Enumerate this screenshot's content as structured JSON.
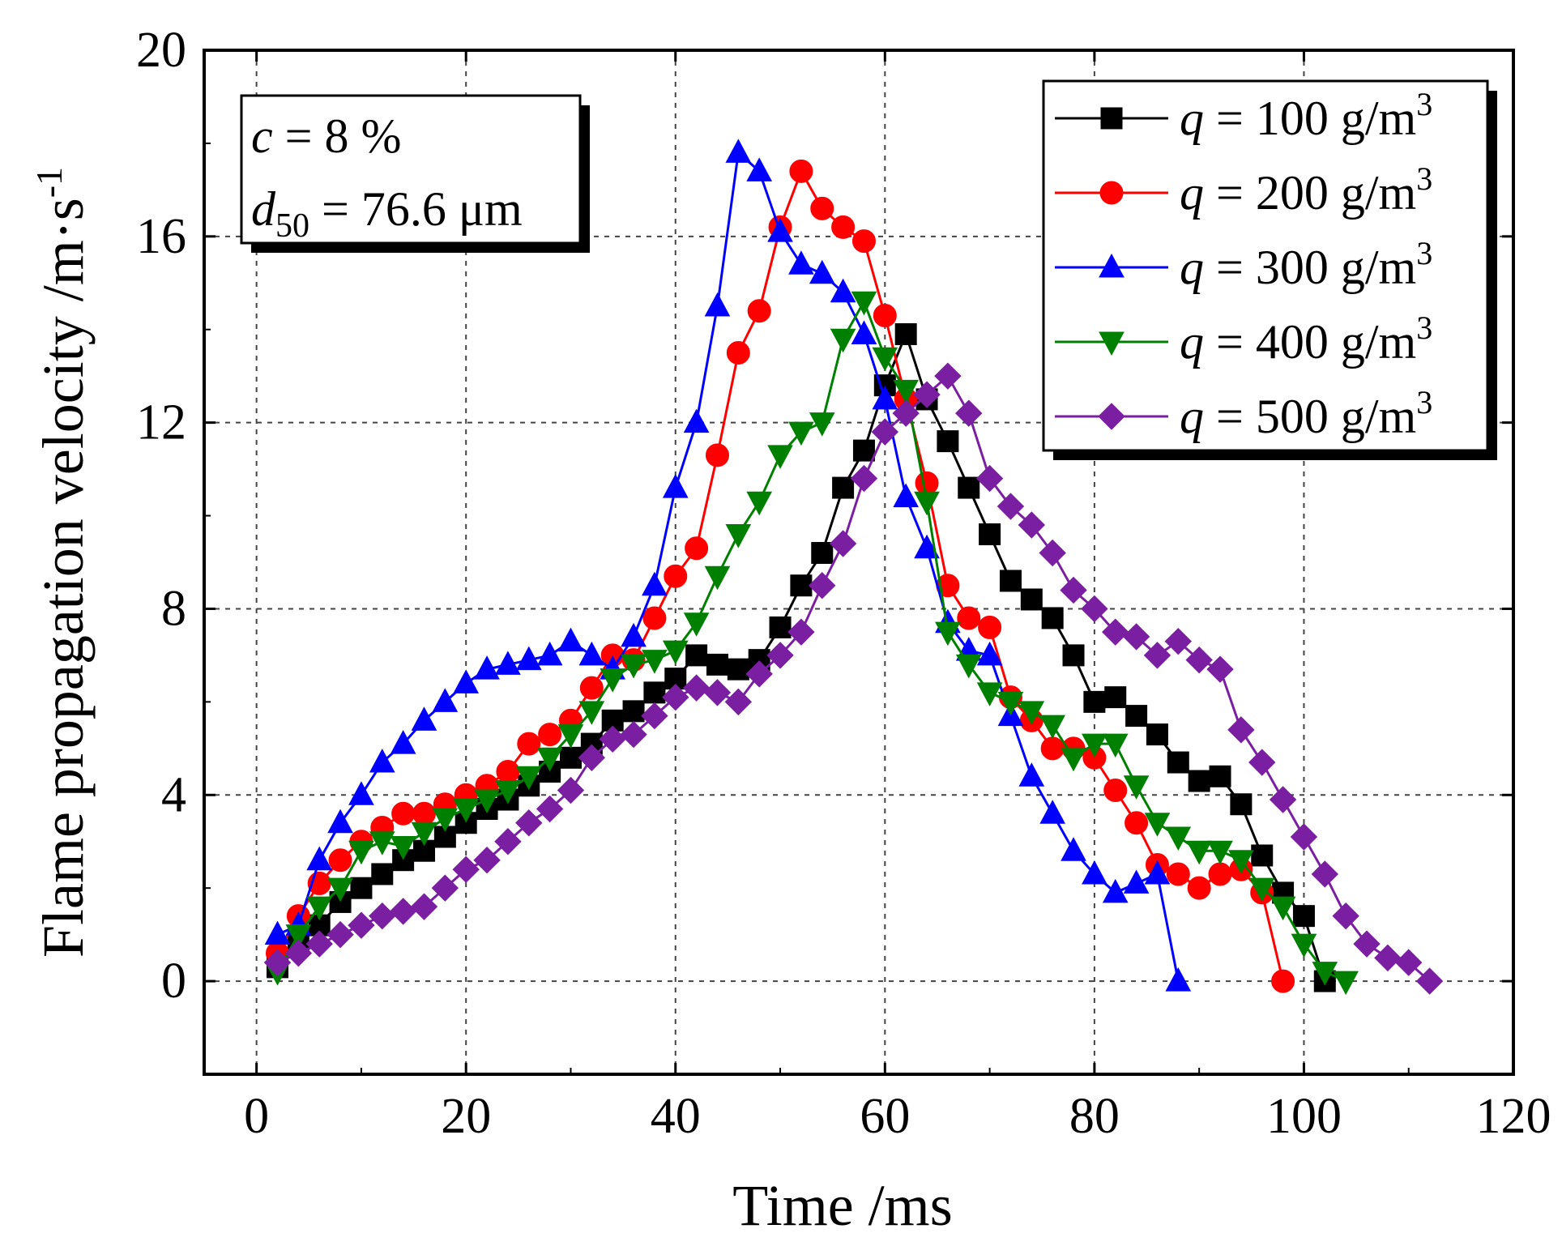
{
  "chart_data": {
    "type": "line",
    "title": "",
    "xlabel": "Time /ms",
    "ylabel": "Flame propagation velocity /m·s",
    "ylabel_sup": "-1",
    "xlim": [
      -5,
      120
    ],
    "ylim": [
      -2,
      20
    ],
    "xticks": [
      0,
      20,
      40,
      60,
      80,
      100,
      120
    ],
    "yticks": [
      0,
      4,
      8,
      12,
      16,
      20
    ],
    "grid": true,
    "legend_position": "top-right",
    "annotation": {
      "c_symbol": "c",
      "c_text": " = 8 %",
      "d_symbol": "d",
      "d_sub": "50",
      "d_text": " = 76.6 μm"
    },
    "series": [
      {
        "name": "q = 100 g/m3",
        "label_q": "q",
        "label_text": " = 100 g/m",
        "label_sup": "3",
        "color": "#000000",
        "marker": "square",
        "x": [
          2,
          4,
          6,
          8,
          10,
          12,
          14,
          16,
          18,
          20,
          22,
          24,
          26,
          28,
          30,
          32,
          34,
          36,
          38,
          40,
          42,
          44,
          46,
          48,
          50,
          52,
          54,
          56,
          58,
          60,
          62,
          64,
          66,
          68,
          70,
          72,
          74,
          76,
          78,
          80,
          82,
          84,
          86,
          88,
          90,
          92,
          94,
          96,
          98,
          100,
          102
        ],
        "y": [
          0.3,
          0.8,
          1.2,
          1.7,
          2.0,
          2.3,
          2.6,
          2.8,
          3.1,
          3.4,
          3.7,
          3.9,
          4.2,
          4.5,
          4.8,
          5.1,
          5.6,
          5.8,
          6.2,
          6.5,
          7.0,
          6.8,
          6.7,
          6.9,
          7.6,
          8.5,
          9.2,
          10.6,
          11.4,
          12.8,
          13.9,
          12.5,
          11.6,
          10.6,
          9.6,
          8.6,
          8.2,
          7.8,
          7.0,
          6.0,
          6.1,
          5.7,
          5.3,
          4.7,
          4.3,
          4.4,
          3.8,
          2.7,
          1.9,
          1.4,
          0.0
        ]
      },
      {
        "name": "q = 200 g/m3",
        "label_q": "q",
        "label_text": " = 200 g/m",
        "label_sup": "3",
        "color": "#ff0000",
        "marker": "circle",
        "x": [
          2,
          4,
          6,
          8,
          10,
          12,
          14,
          16,
          18,
          20,
          22,
          24,
          26,
          28,
          30,
          32,
          34,
          36,
          38,
          40,
          42,
          44,
          46,
          48,
          50,
          52,
          54,
          56,
          58,
          60,
          62,
          64,
          66,
          68,
          70,
          72,
          74,
          76,
          78,
          80,
          82,
          84,
          86,
          88,
          90,
          92,
          94,
          96,
          98
        ],
        "y": [
          0.6,
          1.4,
          2.1,
          2.6,
          3.0,
          3.3,
          3.6,
          3.6,
          3.8,
          4.0,
          4.2,
          4.5,
          5.1,
          5.3,
          5.6,
          6.3,
          7.0,
          6.9,
          7.8,
          8.7,
          9.3,
          11.3,
          13.5,
          14.4,
          16.2,
          17.4,
          16.6,
          16.2,
          15.9,
          14.3,
          12.5,
          10.7,
          8.5,
          7.8,
          7.6,
          6.1,
          5.6,
          5.0,
          5.0,
          4.8,
          4.1,
          3.4,
          2.5,
          2.3,
          2.0,
          2.3,
          2.4,
          1.9,
          0.0
        ]
      },
      {
        "name": "q = 300 g/m3",
        "label_q": "q",
        "label_text": " = 300 g/m",
        "label_sup": "3",
        "color": "#0000ff",
        "marker": "triangle-up",
        "x": [
          2,
          4,
          6,
          8,
          10,
          12,
          14,
          16,
          18,
          20,
          22,
          24,
          26,
          28,
          30,
          32,
          34,
          36,
          38,
          40,
          42,
          44,
          46,
          48,
          50,
          52,
          54,
          56,
          58,
          60,
          62,
          64,
          66,
          68,
          70,
          72,
          74,
          76,
          78,
          80,
          82,
          84,
          86,
          88
        ],
        "y": [
          1.0,
          1.2,
          2.6,
          3.4,
          4.0,
          4.7,
          5.1,
          5.6,
          6.0,
          6.4,
          6.7,
          6.8,
          6.9,
          7.0,
          7.3,
          7.0,
          6.7,
          7.4,
          8.5,
          10.6,
          12.0,
          14.5,
          17.8,
          17.4,
          16.1,
          15.4,
          15.2,
          14.8,
          13.9,
          12.5,
          10.4,
          9.3,
          7.7,
          7.1,
          7.0,
          5.7,
          4.4,
          3.6,
          2.8,
          2.3,
          1.9,
          2.1,
          2.3,
          0.0
        ]
      },
      {
        "name": "q = 400 g/m3",
        "label_q": "q",
        "label_text": " = 400 g/m",
        "label_sup": "3",
        "color": "#008000",
        "marker": "triangle-down",
        "x": [
          2,
          4,
          6,
          8,
          10,
          12,
          14,
          16,
          18,
          20,
          22,
          24,
          26,
          28,
          30,
          32,
          34,
          36,
          38,
          40,
          42,
          44,
          46,
          48,
          50,
          52,
          54,
          56,
          58,
          60,
          62,
          64,
          66,
          68,
          70,
          72,
          74,
          76,
          78,
          80,
          82,
          84,
          86,
          88,
          90,
          92,
          94,
          96,
          98,
          100,
          102,
          104
        ],
        "y": [
          0.2,
          1.0,
          1.6,
          2.0,
          2.8,
          3.0,
          2.9,
          3.2,
          3.5,
          3.7,
          3.9,
          4.1,
          4.4,
          4.8,
          5.3,
          5.8,
          6.5,
          6.8,
          6.9,
          7.1,
          7.7,
          8.7,
          9.6,
          10.3,
          11.3,
          11.8,
          12.0,
          13.8,
          14.6,
          13.4,
          12.7,
          10.3,
          7.5,
          6.8,
          6.2,
          6.0,
          5.8,
          5.5,
          4.8,
          5.1,
          5.1,
          4.2,
          3.4,
          3.1,
          2.8,
          2.8,
          2.6,
          2.0,
          1.6,
          0.8,
          0.2,
          0.0
        ]
      },
      {
        "name": "q = 500 g/m3",
        "label_q": "q",
        "label_text": " = 500 g/m",
        "label_sup": "3",
        "color": "#7b1fa2",
        "marker": "diamond",
        "x": [
          2,
          4,
          6,
          8,
          10,
          12,
          14,
          16,
          18,
          20,
          22,
          24,
          26,
          28,
          30,
          32,
          34,
          36,
          38,
          40,
          42,
          44,
          46,
          48,
          50,
          52,
          54,
          56,
          58,
          60,
          62,
          64,
          66,
          68,
          70,
          72,
          74,
          76,
          78,
          80,
          82,
          84,
          86,
          88,
          90,
          92,
          94,
          96,
          98,
          100,
          102,
          104,
          106,
          108,
          110,
          112
        ],
        "y": [
          0.4,
          0.6,
          0.8,
          1.0,
          1.2,
          1.4,
          1.5,
          1.6,
          2.0,
          2.4,
          2.6,
          3.0,
          3.4,
          3.7,
          4.1,
          4.8,
          5.2,
          5.3,
          5.7,
          6.1,
          6.3,
          6.2,
          6.0,
          6.6,
          7.0,
          7.5,
          8.5,
          9.4,
          10.8,
          11.8,
          12.2,
          12.6,
          13.0,
          12.2,
          10.8,
          10.2,
          9.8,
          9.2,
          8.4,
          8.0,
          7.5,
          7.4,
          7.0,
          7.3,
          6.9,
          6.7,
          5.4,
          4.7,
          3.9,
          3.1,
          2.3,
          1.4,
          0.8,
          0.5,
          0.4,
          0.0
        ]
      }
    ]
  }
}
